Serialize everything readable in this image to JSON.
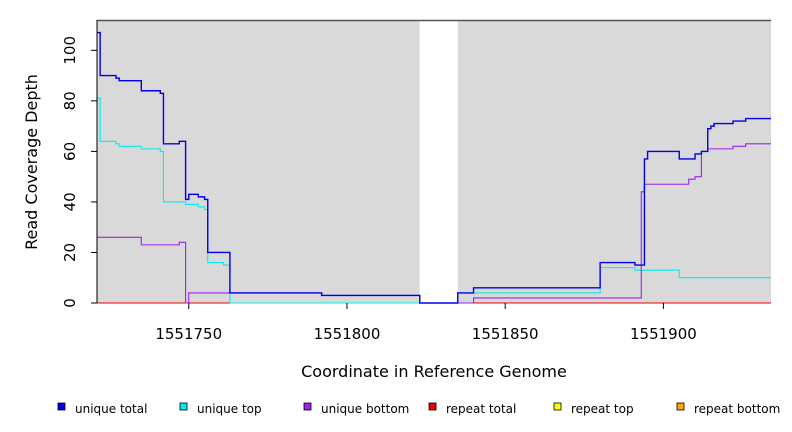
{
  "chart_data": {
    "type": "line",
    "title": "",
    "xlabel": "Coordinate in Reference Genome",
    "ylabel": "Read Coverage Depth",
    "xlim": [
      1551721,
      1551934
    ],
    "ylim": [
      0,
      112
    ],
    "x_ticks": [
      1551750,
      1551800,
      1551850,
      1551900
    ],
    "y_ticks": [
      0,
      20,
      40,
      60,
      80,
      100
    ],
    "grid": false,
    "background": "#d9d9d9",
    "gap": [
      1551823,
      1551835
    ],
    "step": true,
    "legend_position": "bottom",
    "series": [
      {
        "name": "unique total",
        "color": "#0000ee",
        "points": [
          [
            1551721,
            107
          ],
          [
            1551722,
            90
          ],
          [
            1551727,
            89
          ],
          [
            1551728,
            88
          ],
          [
            1551735,
            84
          ],
          [
            1551741,
            83
          ],
          [
            1551742,
            63
          ],
          [
            1551747,
            64
          ],
          [
            1551749,
            41
          ],
          [
            1551750,
            43
          ],
          [
            1551753,
            42
          ],
          [
            1551755,
            41
          ],
          [
            1551756,
            20
          ],
          [
            1551763,
            4
          ],
          [
            1551792,
            3
          ],
          [
            1551823,
            0
          ],
          [
            1551835,
            4
          ],
          [
            1551840,
            6
          ],
          [
            1551880,
            16
          ],
          [
            1551891,
            15
          ],
          [
            1551894,
            57
          ],
          [
            1551895,
            60
          ],
          [
            1551905,
            57
          ],
          [
            1551910,
            59
          ],
          [
            1551912,
            60
          ],
          [
            1551914,
            69
          ],
          [
            1551915,
            70
          ],
          [
            1551916,
            71
          ],
          [
            1551922,
            72
          ],
          [
            1551926,
            73
          ],
          [
            1551934,
            73
          ]
        ]
      },
      {
        "name": "unique top",
        "color": "#00eeee",
        "points": [
          [
            1551721,
            81
          ],
          [
            1551722,
            64
          ],
          [
            1551727,
            63
          ],
          [
            1551728,
            62
          ],
          [
            1551735,
            61
          ],
          [
            1551741,
            60
          ],
          [
            1551742,
            40
          ],
          [
            1551749,
            39
          ],
          [
            1551753,
            38
          ],
          [
            1551755,
            37
          ],
          [
            1551756,
            16
          ],
          [
            1551761,
            15
          ],
          [
            1551763,
            0
          ],
          [
            1551823,
            0
          ],
          [
            1551835,
            4
          ],
          [
            1551840,
            4
          ],
          [
            1551880,
            14
          ],
          [
            1551891,
            13
          ],
          [
            1551905,
            10
          ],
          [
            1551934,
            10
          ]
        ]
      },
      {
        "name": "unique bottom",
        "color": "#a020f0",
        "points": [
          [
            1551721,
            26
          ],
          [
            1551735,
            23
          ],
          [
            1551747,
            24
          ],
          [
            1551749,
            0
          ],
          [
            1551750,
            4
          ],
          [
            1551763,
            4
          ],
          [
            1551792,
            3
          ],
          [
            1551823,
            0
          ],
          [
            1551840,
            2
          ],
          [
            1551893,
            44
          ],
          [
            1551894,
            47
          ],
          [
            1551908,
            49
          ],
          [
            1551910,
            50
          ],
          [
            1551912,
            60
          ],
          [
            1551914,
            61
          ],
          [
            1551922,
            62
          ],
          [
            1551926,
            63
          ],
          [
            1551934,
            63
          ]
        ]
      },
      {
        "name": "repeat total",
        "color": "#ee0000",
        "points": [
          [
            1551721,
            0
          ],
          [
            1551934,
            0
          ]
        ]
      },
      {
        "name": "repeat top",
        "color": "#ffff00",
        "points": [
          [
            1551721,
            0
          ],
          [
            1551934,
            0
          ]
        ]
      },
      {
        "name": "repeat bottom",
        "color": "#ffa500",
        "points": [
          [
            1551721,
            0
          ],
          [
            1551934,
            0
          ]
        ]
      }
    ]
  }
}
